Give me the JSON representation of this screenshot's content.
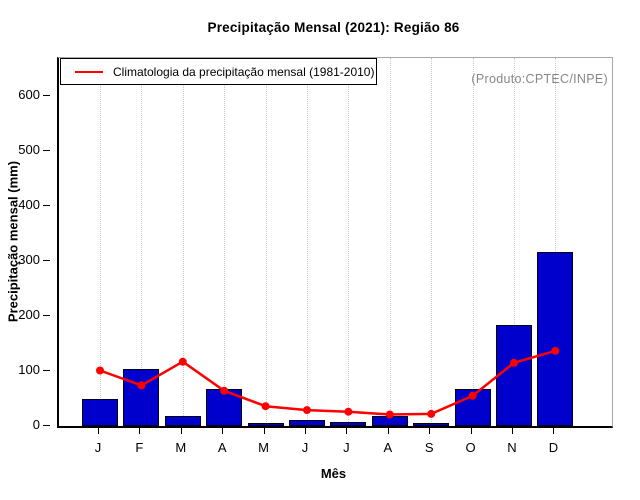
{
  "title": "Precipitação Mensal (2021): Região 86",
  "watermark": "(Produto:CPTEC/INPE)",
  "legend": {
    "label": "Climatologia da precipitação mensal (1981-2010)"
  },
  "colors": {
    "bar_fill": "#0000cd",
    "bar_border": "#000014",
    "line": "#ff0000",
    "box_gray": "#a8a8a8",
    "watermark_gray": "#878787",
    "gridline": "#c9c9c9"
  },
  "chart_data": {
    "type": "bar",
    "categories": [
      "J",
      "F",
      "M",
      "A",
      "M",
      "J",
      "J",
      "A",
      "S",
      "O",
      "N",
      "D"
    ],
    "series": [
      {
        "name": "Precipitação mensal 2021",
        "type": "bar",
        "color": "#0000cd",
        "values": [
          49,
          103,
          18,
          68,
          5,
          11,
          8,
          18,
          5,
          67,
          184,
          316
        ]
      },
      {
        "name": "Climatologia da precipitação mensal (1981-2010)",
        "type": "line",
        "color": "#ff0000",
        "values": [
          101,
          74,
          117,
          64,
          36,
          29,
          26,
          21,
          22,
          55,
          115,
          137
        ]
      }
    ],
    "title": "Precipitação Mensal (2021): Região 86",
    "xlabel": "Mês",
    "ylabel": "Precipitação mensal (mm)",
    "ylim": [
      0,
      670
    ],
    "yticks": [
      0,
      100,
      200,
      300,
      400,
      500,
      600
    ],
    "grid": "vertical-dotted",
    "legend_position": "top-left"
  }
}
